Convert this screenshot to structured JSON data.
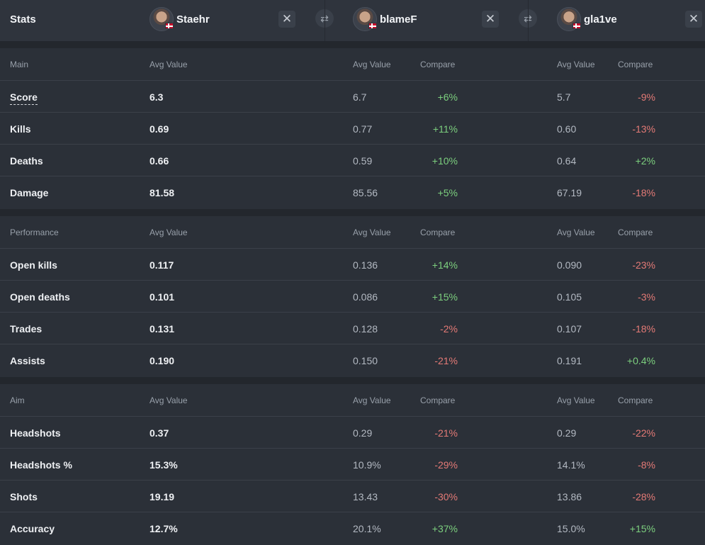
{
  "header": {
    "stats_label": "Stats",
    "players": [
      {
        "name": "Staehr"
      },
      {
        "name": "blameF"
      },
      {
        "name": "gla1ve"
      }
    ]
  },
  "column_headers": {
    "avg": "Avg Value",
    "compare": "Compare"
  },
  "sections": [
    {
      "title": "Main",
      "rows": [
        {
          "label": "Score",
          "v1": "6.3",
          "v2": "6.7",
          "c2": "+6%",
          "v3": "5.7",
          "c3": "-9%"
        },
        {
          "label": "Kills",
          "v1": "0.69",
          "v2": "0.77",
          "c2": "+11%",
          "v3": "0.60",
          "c3": "-13%"
        },
        {
          "label": "Deaths",
          "v1": "0.66",
          "v2": "0.59",
          "c2": "+10%",
          "v3": "0.64",
          "c3": "+2%"
        },
        {
          "label": "Damage",
          "v1": "81.58",
          "v2": "85.56",
          "c2": "+5%",
          "v3": "67.19",
          "c3": "-18%"
        }
      ]
    },
    {
      "title": "Performance",
      "rows": [
        {
          "label": "Open kills",
          "v1": "0.117",
          "v2": "0.136",
          "c2": "+14%",
          "v3": "0.090",
          "c3": "-23%"
        },
        {
          "label": "Open deaths",
          "v1": "0.101",
          "v2": "0.086",
          "c2": "+15%",
          "v3": "0.105",
          "c3": "-3%"
        },
        {
          "label": "Trades",
          "v1": "0.131",
          "v2": "0.128",
          "c2": "-2%",
          "v3": "0.107",
          "c3": "-18%"
        },
        {
          "label": "Assists",
          "v1": "0.190",
          "v2": "0.150",
          "c2": "-21%",
          "v3": "0.191",
          "c3": "+0.4%"
        }
      ]
    },
    {
      "title": "Aim",
      "rows": [
        {
          "label": "Headshots",
          "v1": "0.37",
          "v2": "0.29",
          "c2": "-21%",
          "v3": "0.29",
          "c3": "-22%"
        },
        {
          "label": "Headshots %",
          "v1": "15.3%",
          "v2": "10.9%",
          "c2": "-29%",
          "v3": "14.1%",
          "c3": "-8%"
        },
        {
          "label": "Shots",
          "v1": "19.19",
          "v2": "13.43",
          "c2": "-30%",
          "v3": "13.86",
          "c3": "-28%"
        },
        {
          "label": "Accuracy",
          "v1": "12.7%",
          "v2": "20.1%",
          "c2": "+37%",
          "v3": "15.0%",
          "c3": "+15%"
        }
      ]
    }
  ],
  "colors": {
    "positive": "#7ccf7e",
    "negative": "#e47a76",
    "background": "#2b3038"
  },
  "icons": {
    "close": "close-icon",
    "swap": "swap-icon",
    "flag": "denmark-flag-icon"
  }
}
